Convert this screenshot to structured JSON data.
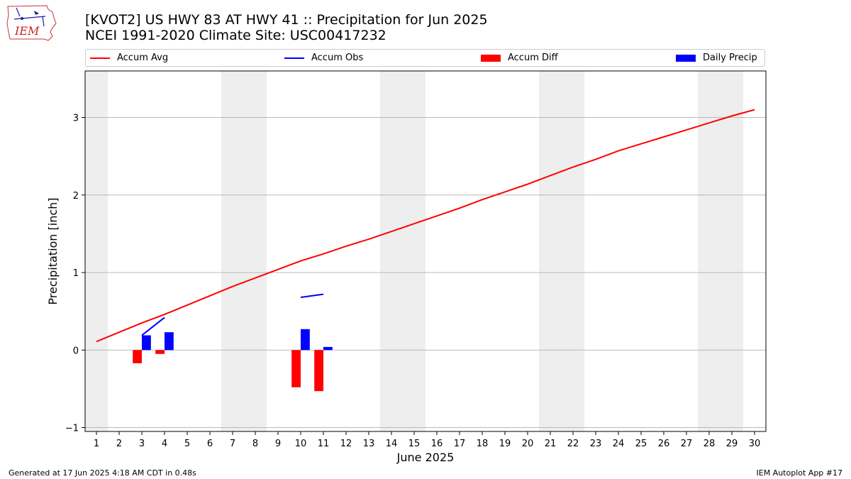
{
  "header": {
    "logo_text": "IEM",
    "title_line1": "[KVOT2] US HWY 83 AT HWY 41 :: Precipitation for Jun 2025",
    "title_line2": "NCEI 1991-2020 Climate Site: USC00417232"
  },
  "footer": {
    "generated": "Generated at 17 Jun 2025 4:18 AM CDT in 0.48s",
    "app": "IEM Autoplot App #17"
  },
  "colors": {
    "accum_avg": "#ff0000",
    "accum_obs": "#0000ff",
    "accum_diff": "#ff0000",
    "daily_precip": "#0000ff",
    "weekend_shade": "#eeeeee",
    "grid": "#b0b0b0"
  },
  "chart_data": {
    "type": "bar",
    "xlabel": "June 2025",
    "ylabel": "Precipitation [inch]",
    "xlim": [
      0.5,
      30.5
    ],
    "ylim": [
      -1.05,
      3.6
    ],
    "yticks": [
      -1,
      0,
      1,
      2,
      3
    ],
    "xticks": [
      1,
      2,
      3,
      4,
      5,
      6,
      7,
      8,
      9,
      10,
      11,
      12,
      13,
      14,
      15,
      16,
      17,
      18,
      19,
      20,
      21,
      22,
      23,
      24,
      25,
      26,
      27,
      28,
      29,
      30
    ],
    "grid": "y-axis only",
    "legend_position": "top, outside plot",
    "weekend_days": [
      1,
      7,
      8,
      14,
      15,
      21,
      22,
      28,
      29
    ],
    "series": [
      {
        "name": "Accum Avg",
        "kind": "line",
        "x": [
          1,
          2,
          3,
          4,
          5,
          6,
          7,
          8,
          9,
          10,
          11,
          12,
          13,
          14,
          15,
          16,
          17,
          18,
          19,
          20,
          21,
          22,
          23,
          24,
          25,
          26,
          27,
          28,
          29,
          30
        ],
        "values": [
          0.11,
          0.23,
          0.35,
          0.46,
          0.58,
          0.7,
          0.82,
          0.93,
          1.04,
          1.15,
          1.24,
          1.34,
          1.43,
          1.53,
          1.63,
          1.73,
          1.83,
          1.94,
          2.04,
          2.14,
          2.25,
          2.36,
          2.46,
          2.57,
          2.66,
          2.75,
          2.84,
          2.93,
          3.02,
          3.1
        ]
      },
      {
        "name": "Accum Obs",
        "kind": "line",
        "segments": [
          {
            "x": [
              3,
              4
            ],
            "values": [
              0.19,
              0.42
            ]
          },
          {
            "x": [
              10,
              11
            ],
            "values": [
              0.68,
              0.72
            ]
          }
        ]
      },
      {
        "name": "Accum Diff",
        "kind": "bar",
        "x": [
          3,
          4,
          10,
          11
        ],
        "values": [
          -0.17,
          -0.05,
          -0.48,
          -0.53
        ]
      },
      {
        "name": "Daily Precip",
        "kind": "bar",
        "x": [
          3,
          4,
          10,
          11
        ],
        "values": [
          0.19,
          0.23,
          0.27,
          0.04
        ]
      }
    ]
  }
}
